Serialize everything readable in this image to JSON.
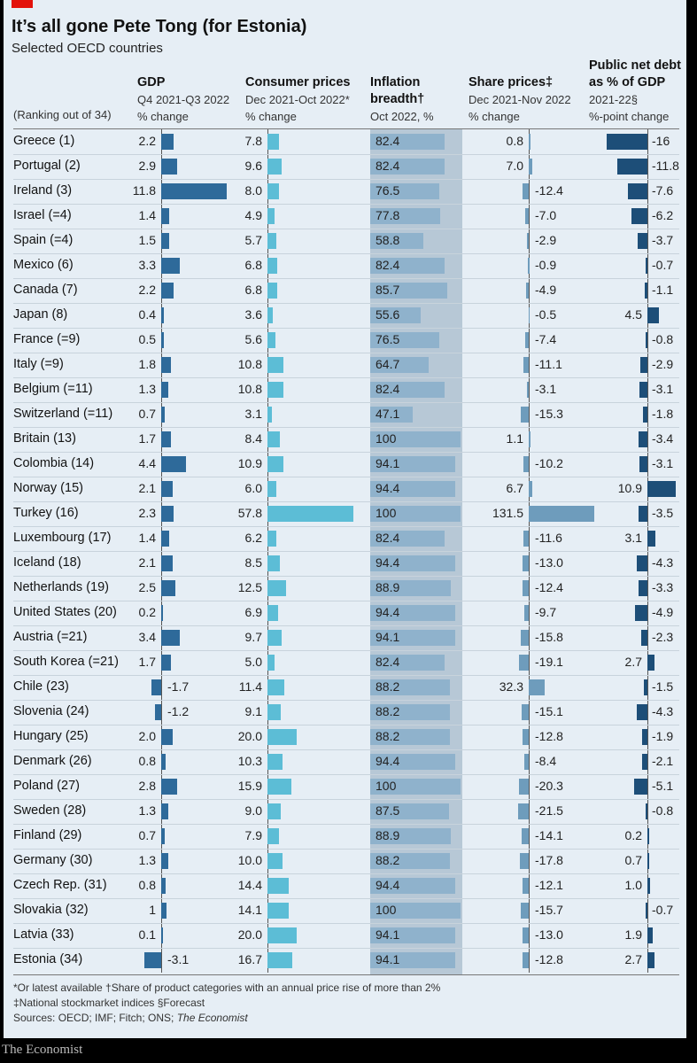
{
  "title": "It’s all gone Pete Tong (for Estonia)",
  "subtitle": "Selected OECD countries",
  "rank_note": "(Ranking out of 34)",
  "columns": [
    {
      "title": "GDP",
      "title2": "",
      "sub1": "Q4 2021-Q3 2022",
      "sub2": "% change"
    },
    {
      "title": "Consumer prices",
      "title2": "",
      "sub1": "Dec 2021-Oct 2022*",
      "sub2": "% change"
    },
    {
      "title": "Inflation",
      "title2": "breadth†",
      "sub1": "Oct 2022, %",
      "sub2": ""
    },
    {
      "title": "Share prices‡",
      "title2": "",
      "sub1": "Dec 2021-Nov 2022",
      "sub2": "% change"
    },
    {
      "title": "Public net debt",
      "title2": "as % of GDP",
      "sub1": "2021-22§",
      "sub2": "%-point change"
    }
  ],
  "colors": {
    "gdp": "#2e6a9a",
    "cpi": "#5cbdd6",
    "inflation": "#8fb2cc",
    "share": "#6e9cbc",
    "debt": "#1d4e78"
  },
  "chart_data": {
    "type": "table",
    "countries": [
      "Greece (1)",
      "Portugal (2)",
      "Ireland (3)",
      "Israel (=4)",
      "Spain (=4)",
      "Mexico (6)",
      "Canada (7)",
      "Japan (8)",
      "France (=9)",
      "Italy (=9)",
      "Belgium (=11)",
      "Switzerland (=11)",
      "Britain (13)",
      "Colombia (14)",
      "Norway (15)",
      "Turkey (16)",
      "Luxembourg (17)",
      "Iceland (18)",
      "Netherlands (19)",
      "United States (20)",
      "Austria (=21)",
      "South Korea (=21)",
      "Chile (23)",
      "Slovenia (24)",
      "Hungary (25)",
      "Denmark (26)",
      "Poland (27)",
      "Sweden (28)",
      "Finland (29)",
      "Germany (30)",
      "Czech Rep. (31)",
      "Slovakia (32)",
      "Latvia (33)",
      "Estonia (34)"
    ],
    "gdp": [
      "2.2",
      "2.9",
      "11.8",
      "1.4",
      "1.5",
      "3.3",
      "2.2",
      "0.4",
      "0.5",
      "1.8",
      "1.3",
      "0.7",
      "1.7",
      "4.4",
      "2.1",
      "2.3",
      "1.4",
      "2.1",
      "2.5",
      "0.2",
      "3.4",
      "1.7",
      "-1.7",
      "-1.2",
      "2.0",
      "0.8",
      "2.8",
      "1.3",
      "0.7",
      "1.3",
      "0.8",
      "1",
      "0.1",
      "-3.1"
    ],
    "consumer_prices": [
      "7.8",
      "9.6",
      "8.0",
      "4.9",
      "5.7",
      "6.8",
      "6.8",
      "3.6",
      "5.6",
      "10.8",
      "10.8",
      "3.1",
      "8.4",
      "10.9",
      "6.0",
      "57.8",
      "6.2",
      "8.5",
      "12.5",
      "6.9",
      "9.7",
      "5.0",
      "11.4",
      "9.1",
      "20.0",
      "10.3",
      "15.9",
      "9.0",
      "7.9",
      "10.0",
      "14.4",
      "14.1",
      "20.0",
      "16.7"
    ],
    "inflation_breadth": [
      "82.4",
      "82.4",
      "76.5",
      "77.8",
      "58.8",
      "82.4",
      "85.7",
      "55.6",
      "76.5",
      "64.7",
      "82.4",
      "47.1",
      "100",
      "94.1",
      "94.4",
      "100",
      "82.4",
      "94.4",
      "88.9",
      "94.4",
      "94.1",
      "82.4",
      "88.2",
      "88.2",
      "88.2",
      "94.4",
      "100",
      "87.5",
      "88.9",
      "88.2",
      "94.4",
      "100",
      "94.1",
      "94.1"
    ],
    "share_prices": [
      "0.8",
      "7.0",
      "-12.4",
      "-7.0",
      "-2.9",
      "-0.9",
      "-4.9",
      "-0.5",
      "-7.4",
      "-11.1",
      "-3.1",
      "-15.3",
      "1.1",
      "-10.2",
      "6.7",
      "131.5",
      "-11.6",
      "-13.0",
      "-12.4",
      "-9.7",
      "-15.8",
      "-19.1",
      "32.3",
      "-15.1",
      "-12.8",
      "-8.4",
      "-20.3",
      "-21.5",
      "-14.1",
      "-17.8",
      "-12.1",
      "-15.7",
      "-13.0",
      "-12.8"
    ],
    "public_net_debt": [
      "-16",
      "-11.8",
      "-7.6",
      "-6.2",
      "-3.7",
      "-0.7",
      "-1.1",
      "4.5",
      "-0.8",
      "-2.9",
      "-3.1",
      "-1.8",
      "-3.4",
      "-3.1",
      "10.9",
      "-3.5",
      "3.1",
      "-4.3",
      "-3.3",
      "-4.9",
      "-2.3",
      "2.7",
      "-1.5",
      "-4.3",
      "-1.9",
      "-2.1",
      "-5.1",
      "-0.8",
      "0.2",
      "0.7",
      "1.0",
      "-0.7",
      "1.9",
      "2.7"
    ]
  },
  "footer": {
    "line1": "*Or latest available    †Share of product categories with an annual price rise of more than 2%",
    "line2": "‡National stockmarket indices    §Forecast",
    "line3a": "Sources: OECD; IMF; Fitch; ONS; ",
    "line3b": "The Economist"
  },
  "brand": "The Economist"
}
